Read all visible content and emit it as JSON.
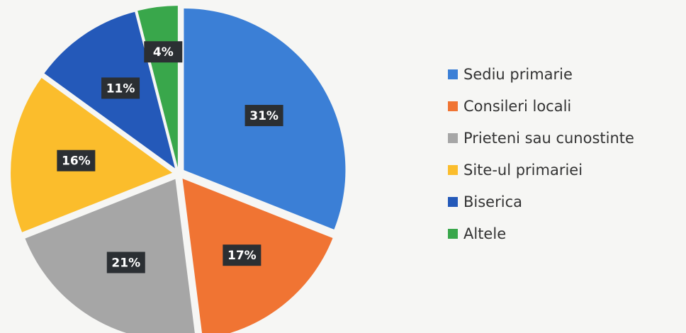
{
  "chart_data": {
    "type": "pie",
    "categories": [
      "Sediu primarie",
      "Consileri locali",
      "Prieteni sau cunostinte",
      "Site-ul primariei",
      "Biserica",
      "Altele"
    ],
    "values": [
      31,
      17,
      21,
      16,
      11,
      4
    ],
    "value_labels": [
      "31%",
      "17%",
      "21%",
      "16%",
      "11%",
      "4%"
    ],
    "colors": [
      "#3b7fd6",
      "#f07433",
      "#a6a6a6",
      "#fbbd2c",
      "#2459b9",
      "#39a74b"
    ],
    "legend": "right"
  }
}
